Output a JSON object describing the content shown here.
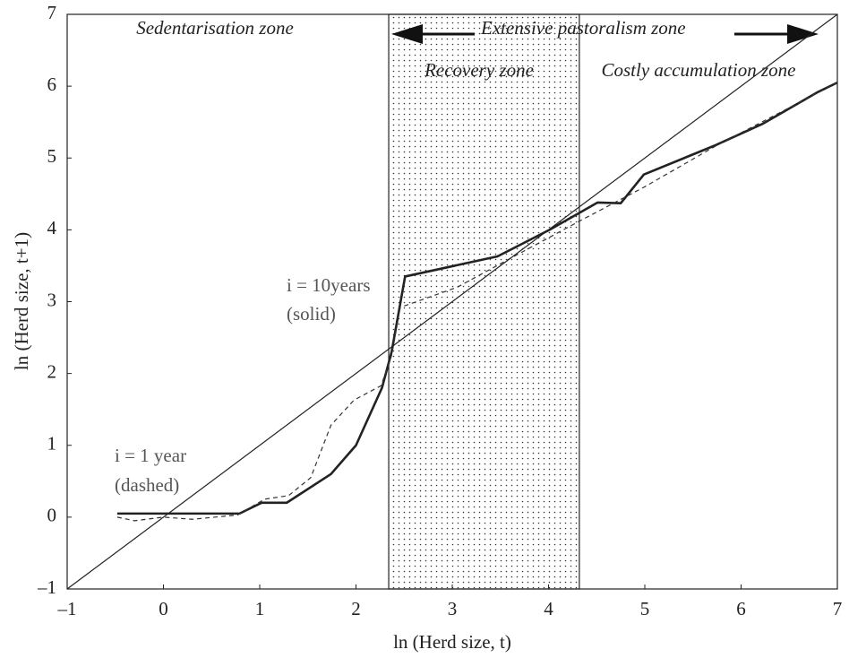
{
  "chart_data": {
    "type": "line",
    "x_label": "ln (Herd size, t)",
    "y_label": "ln (Herd size, t+1)",
    "xlim": [
      -1,
      7
    ],
    "ylim": [
      -1,
      7
    ],
    "xticks": [
      {
        "value": -1,
        "label": "–1"
      },
      0,
      1,
      2,
      3,
      4,
      5,
      6,
      7
    ],
    "yticks": [
      {
        "value": -1,
        "label": "–1"
      },
      0,
      1,
      2,
      3,
      4,
      5,
      6,
      7
    ],
    "shaded_x": [
      2.34,
      4.32
    ],
    "annotations": [
      "Sedentarisation zone",
      "Extensive pastoralism zone",
      "Recovery zone",
      "Costly accumulation zone",
      "i = 10years",
      "(solid)",
      "i = 1 year",
      "(dashed)"
    ],
    "series": [
      {
        "color": "#222222",
        "style": "solid",
        "width": 2.6,
        "x": [
          -0.48,
          0.79,
          1.02,
          1.28,
          1.74,
          2.0,
          2.27,
          2.37,
          2.51,
          3.47,
          4.01,
          4.51,
          4.75,
          4.99,
          5.72,
          6.23,
          6.8,
          7.0
        ],
        "values": [
          0.05,
          0.05,
          0.2,
          0.2,
          0.6,
          1.0,
          1.8,
          2.3,
          3.35,
          3.63,
          4.0,
          4.38,
          4.37,
          4.77,
          5.17,
          5.48,
          5.92,
          6.05
        ]
      },
      {
        "color": "#333333",
        "style": "dashed",
        "width": 1.2,
        "x": [
          -0.48,
          -0.3,
          0,
          0.3,
          0.77,
          1.05,
          1.3,
          1.53,
          1.74,
          1.98,
          2.26,
          2.37,
          2.46,
          3.05,
          3.6,
          4.32,
          5.0,
          5.74,
          6.4,
          7.0
        ],
        "values": [
          0,
          -0.05,
          0,
          -0.03,
          0.03,
          0.25,
          0.3,
          0.55,
          1.28,
          1.63,
          1.83,
          2.25,
          2.92,
          3.2,
          3.6,
          4.12,
          4.6,
          5.17,
          5.63,
          6.05
        ]
      },
      {
        "color": "#222222",
        "style": "solid",
        "width": 1.2,
        "x": [
          -1,
          7
        ],
        "values": [
          -1,
          7
        ]
      }
    ]
  }
}
